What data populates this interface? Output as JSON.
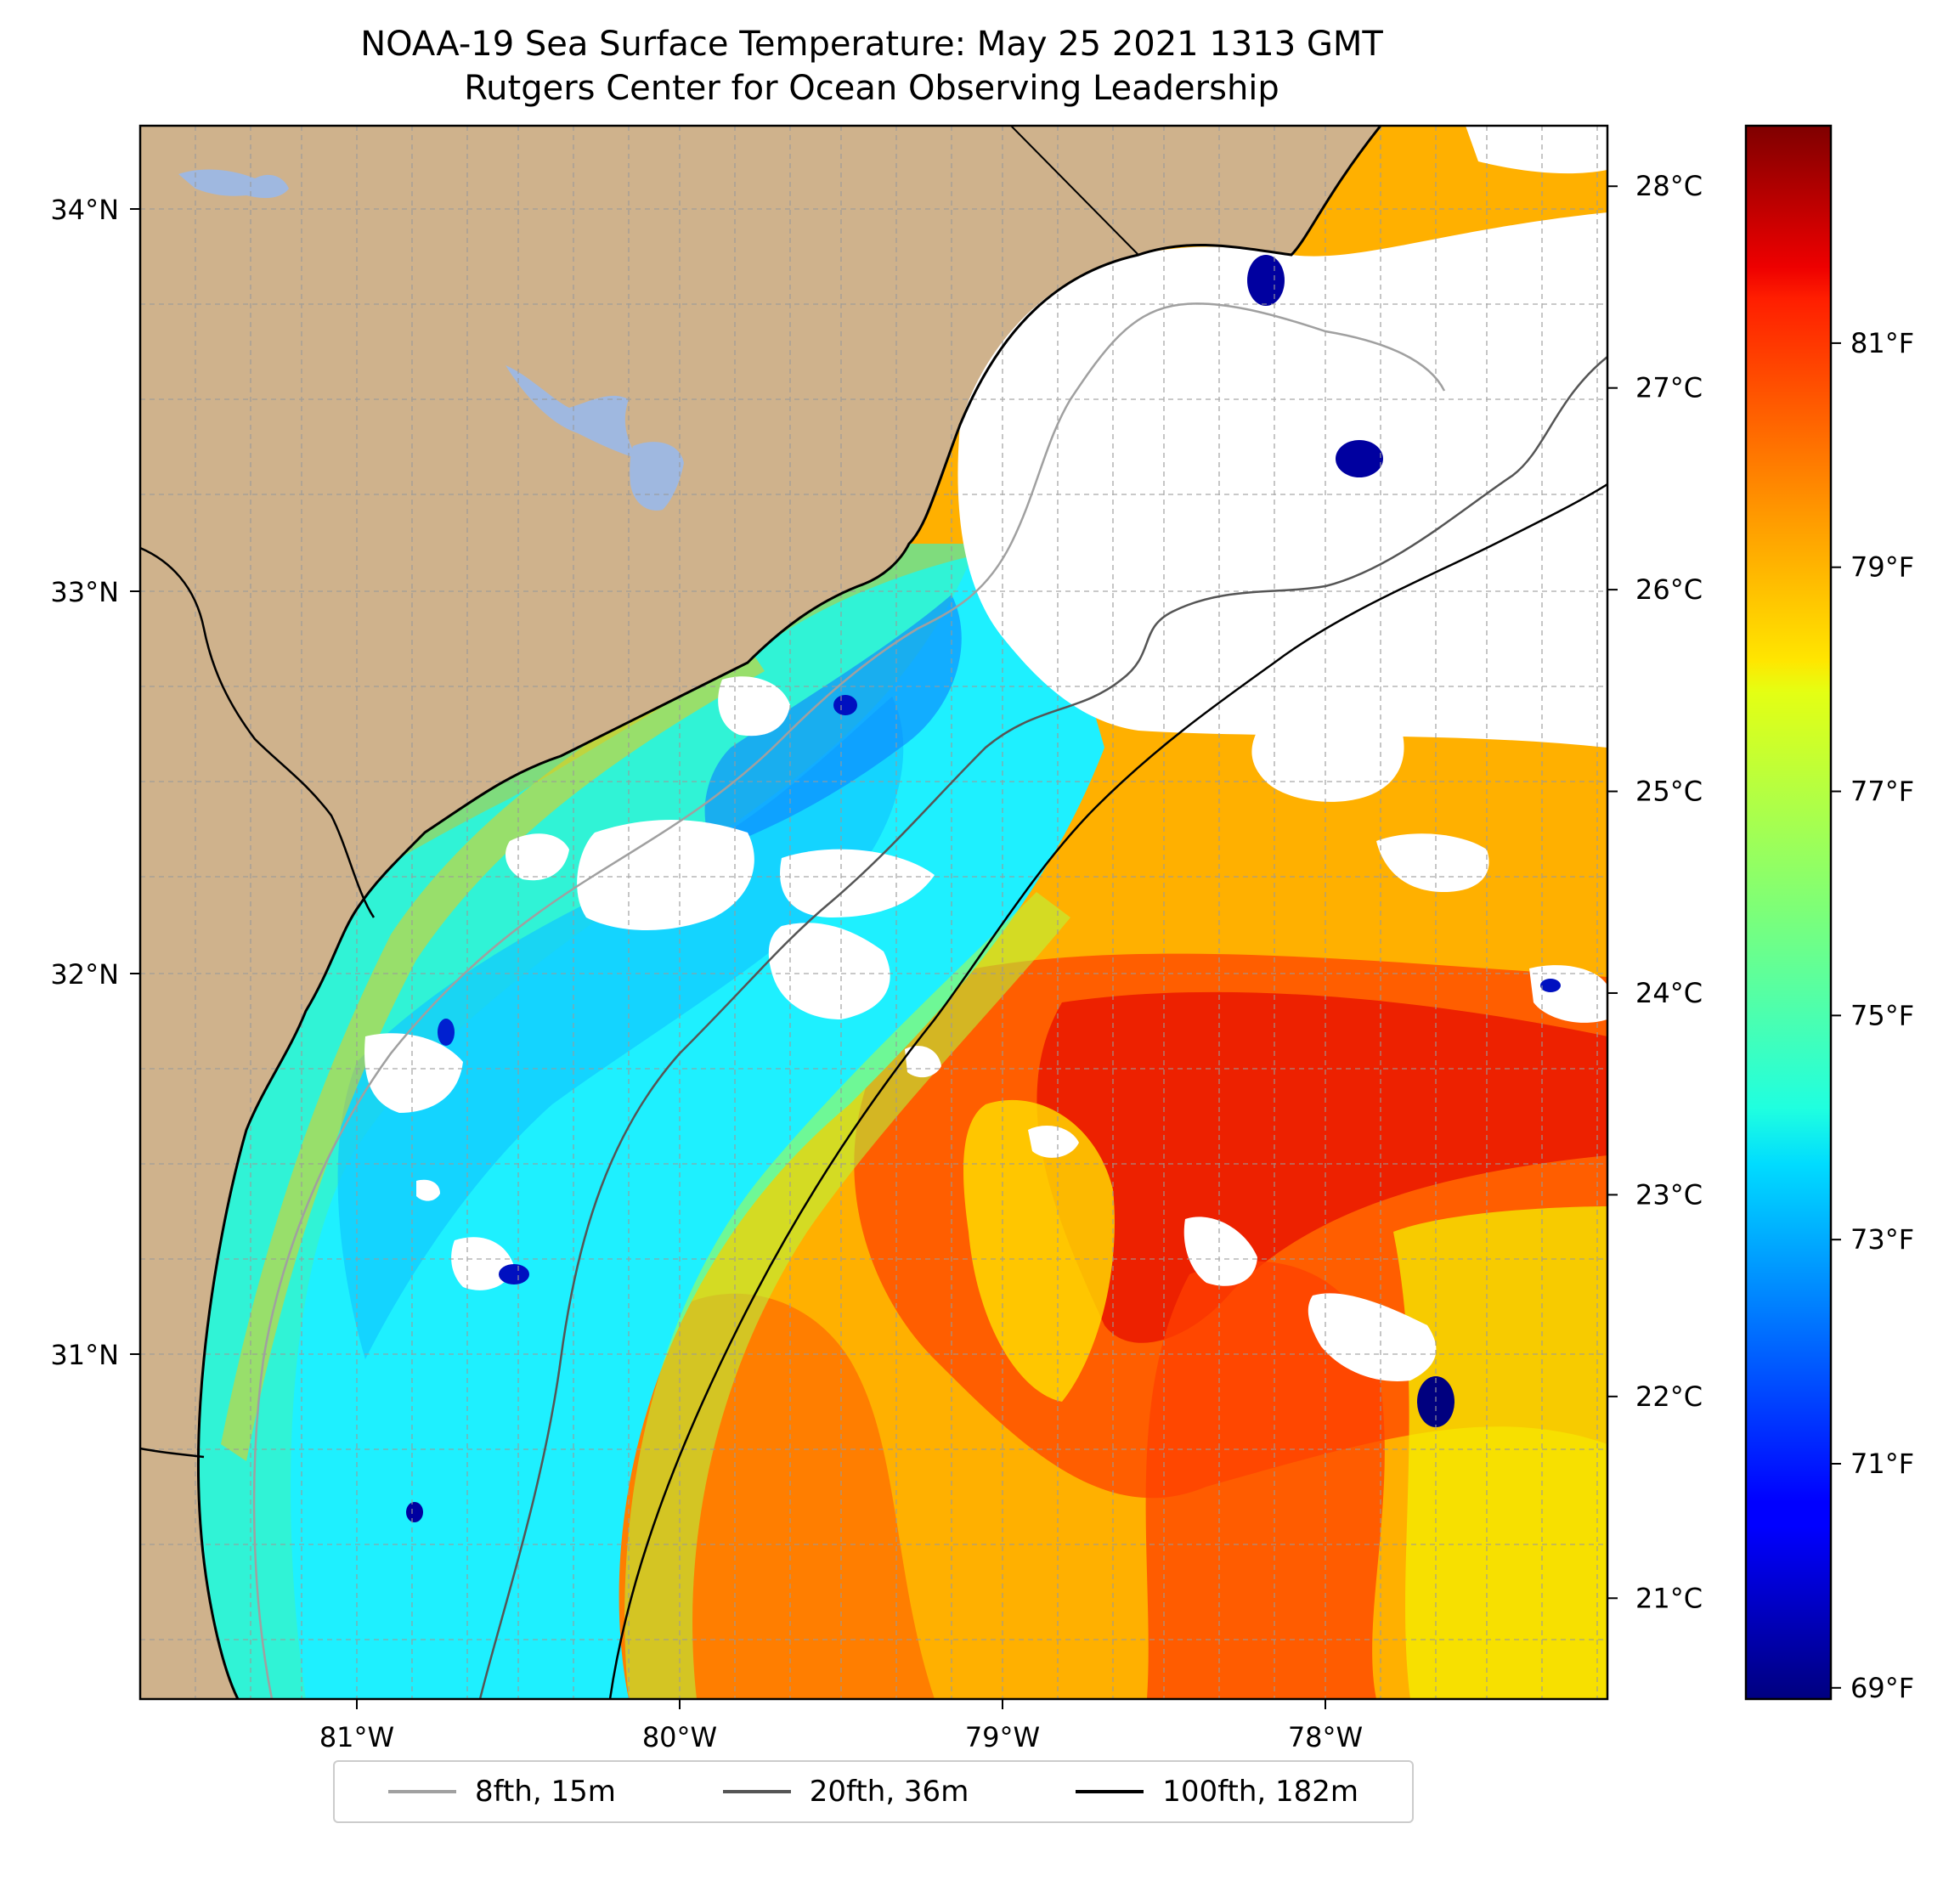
{
  "title": {
    "line1": "NOAA-19 Sea Surface Temperature: May 25 2021 1313 GMT",
    "line2": "Rutgers Center for Ocean Observing Leadership"
  },
  "map": {
    "lon_range": [
      -81.68,
      -77.1
    ],
    "lat_range": [
      30.07,
      34.2
    ],
    "lat_ticks": [
      "34°N",
      "33°N",
      "32°N",
      "31°N"
    ],
    "lat_tick_values": [
      34,
      33,
      32,
      31
    ],
    "lon_ticks": [
      "81°W",
      "80°W",
      "79°W",
      "78°W"
    ],
    "lon_tick_values": [
      -81,
      -80,
      -79,
      -78
    ],
    "gridlines": true,
    "colors": {
      "land": "#cfb28c",
      "lakes": "#9fb8e0",
      "no_data": "#ffffff",
      "coastline": "#000000"
    }
  },
  "colorbar": {
    "colormap": "jet",
    "range_c": [
      20.5,
      28.3
    ],
    "celsius_ticks": [
      "28°C",
      "27°C",
      "26°C",
      "25°C",
      "24°C",
      "23°C",
      "22°C",
      "21°C"
    ],
    "celsius_values": [
      28,
      27,
      26,
      25,
      24,
      23,
      22,
      21
    ],
    "fahrenheit_ticks": [
      "81°F",
      "79°F",
      "77°F",
      "75°F",
      "73°F",
      "71°F",
      "69°F"
    ],
    "fahrenheit_values": [
      81,
      79,
      77,
      75,
      73,
      71,
      69
    ]
  },
  "legend": {
    "placement": "bottom-center",
    "items": [
      {
        "label": "8fth, 15m",
        "color": "#a0a0a0"
      },
      {
        "label": "20fth, 36m",
        "color": "#555555"
      },
      {
        "label": "100fth, 182m",
        "color": "#000000"
      }
    ]
  }
}
